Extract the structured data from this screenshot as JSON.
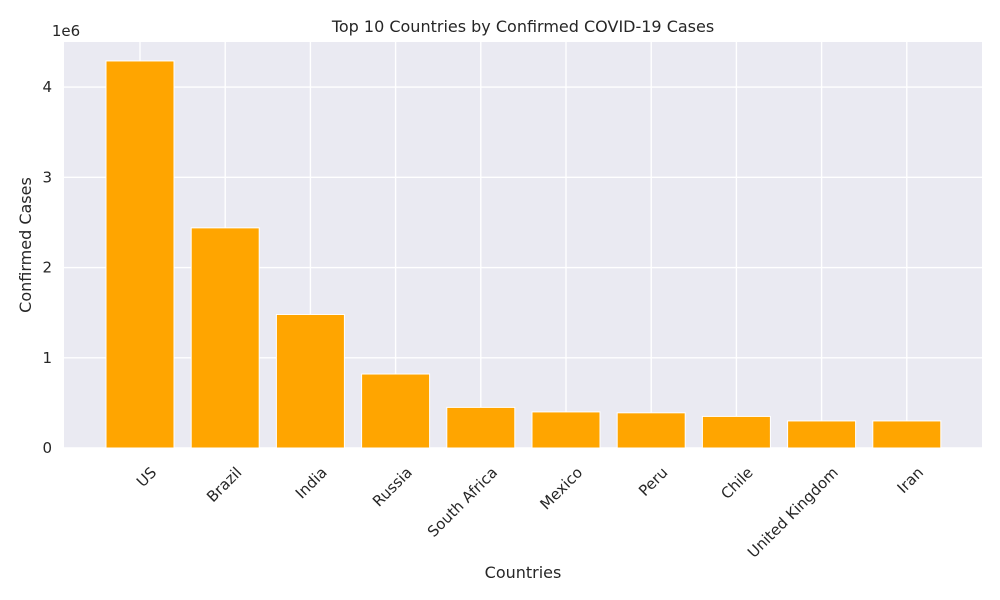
{
  "chart_data": {
    "type": "bar",
    "title": "Top 10 Countries by Confirmed COVID-19 Cases",
    "xlabel": "Countries",
    "ylabel": "Confirmed Cases",
    "y_offset_label": "1e6",
    "categories": [
      "US",
      "Brazil",
      "India",
      "Russia",
      "South Africa",
      "Mexico",
      "Peru",
      "Chile",
      "United Kingdom",
      "Iran"
    ],
    "values": [
      4290000,
      2440000,
      1480000,
      820000,
      450000,
      400000,
      390000,
      350000,
      300000,
      300000
    ],
    "ylim": [
      0,
      4500000
    ],
    "yticks": [
      0,
      1000000,
      2000000,
      3000000,
      4000000
    ],
    "ytick_labels": [
      "0",
      "1",
      "2",
      "3",
      "4"
    ],
    "grid": true,
    "legend": "none",
    "bar_color": "#FFA500",
    "background_color": "#EAEAF2",
    "grid_color": "#FFFFFF"
  }
}
